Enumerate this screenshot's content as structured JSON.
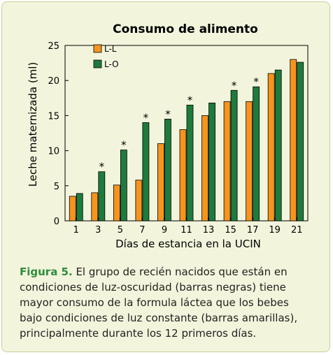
{
  "chart_data": {
    "type": "bar",
    "title": "Consumo de alimento",
    "xlabel": "Días de estancia en la UCIN",
    "ylabel": "Leche maternizada (ml)",
    "ylim": [
      0,
      25
    ],
    "yticks": [
      0,
      5,
      10,
      15,
      20,
      25
    ],
    "x_all": [
      1,
      3,
      5,
      7,
      9,
      11,
      13,
      15,
      17,
      19,
      21
    ],
    "categories": [
      "1",
      "3",
      "5",
      "7",
      "9",
      "11",
      "13",
      "15",
      "17",
      "19",
      "21"
    ],
    "series": [
      {
        "name": "L-L",
        "color": "#f7941d",
        "values": [
          3.5,
          4.0,
          5.1,
          5.8,
          11.0,
          13.0,
          15.0,
          17.0,
          17.0,
          21.0,
          23.0
        ]
      },
      {
        "name": "L-O",
        "color": "#1e7b3c",
        "values": [
          3.9,
          7.0,
          10.1,
          14.0,
          14.5,
          16.5,
          16.8,
          18.6,
          19.1,
          21.5,
          22.6
        ]
      }
    ],
    "significance_marker": "*",
    "significant_categories": [
      "3",
      "5",
      "7",
      "9",
      "11",
      "15",
      "17"
    ],
    "legend_position": "top-left",
    "grid": false
  },
  "caption": {
    "label": "Figura 5.",
    "text": " El grupo de recién nacidos que están en condiciones de luz-oscuridad (barras negras) tiene mayor consumo de la formula láctea que los bebes bajo condiciones de luz constante (barras amarillas), principalmente durante los 12 primeros días."
  },
  "colors": {
    "panel_background": "#f2f5dc",
    "caption_label": "#2f8c3c"
  }
}
